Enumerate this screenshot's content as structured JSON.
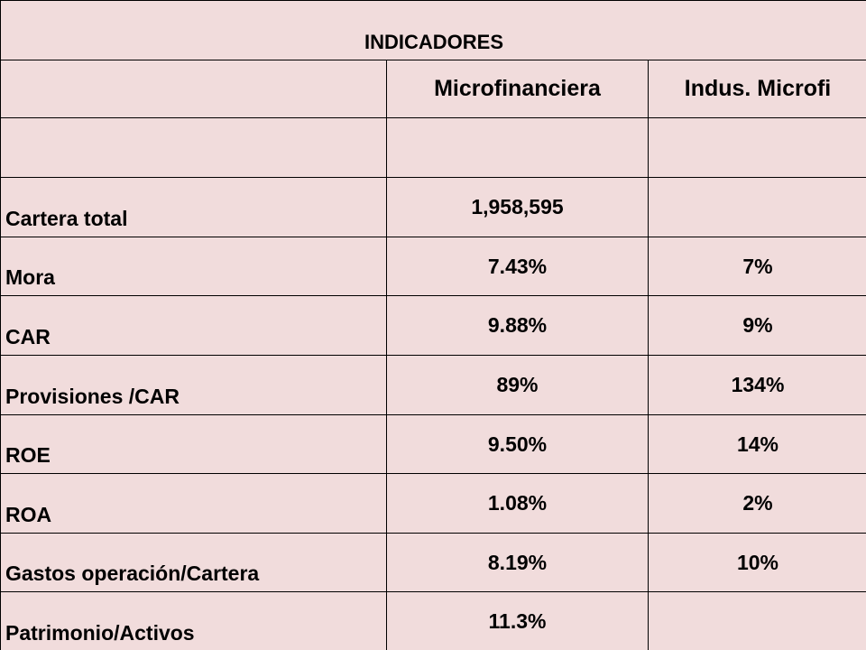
{
  "table": {
    "title": "INDICADORES",
    "headers": [
      "Microfinanciera",
      "Indus. Microfi"
    ],
    "rows": [
      [
        "Cartera total",
        "1,958,595"
      ],
      [
        "Mora",
        "7.43%",
        "7%"
      ],
      [
        "CAR",
        "9.88%",
        "9%"
      ],
      [
        "Provisiones /CAR",
        "89%",
        "134%"
      ],
      [
        "ROE",
        "9.50%",
        "14%"
      ],
      [
        "ROA",
        "1.08%",
        "2%"
      ],
      [
        "Gastos operación/Cartera",
        "8.19%",
        "10%"
      ],
      [
        "Patrimonio/Activos",
        "11.3%"
      ]
    ]
  }
}
